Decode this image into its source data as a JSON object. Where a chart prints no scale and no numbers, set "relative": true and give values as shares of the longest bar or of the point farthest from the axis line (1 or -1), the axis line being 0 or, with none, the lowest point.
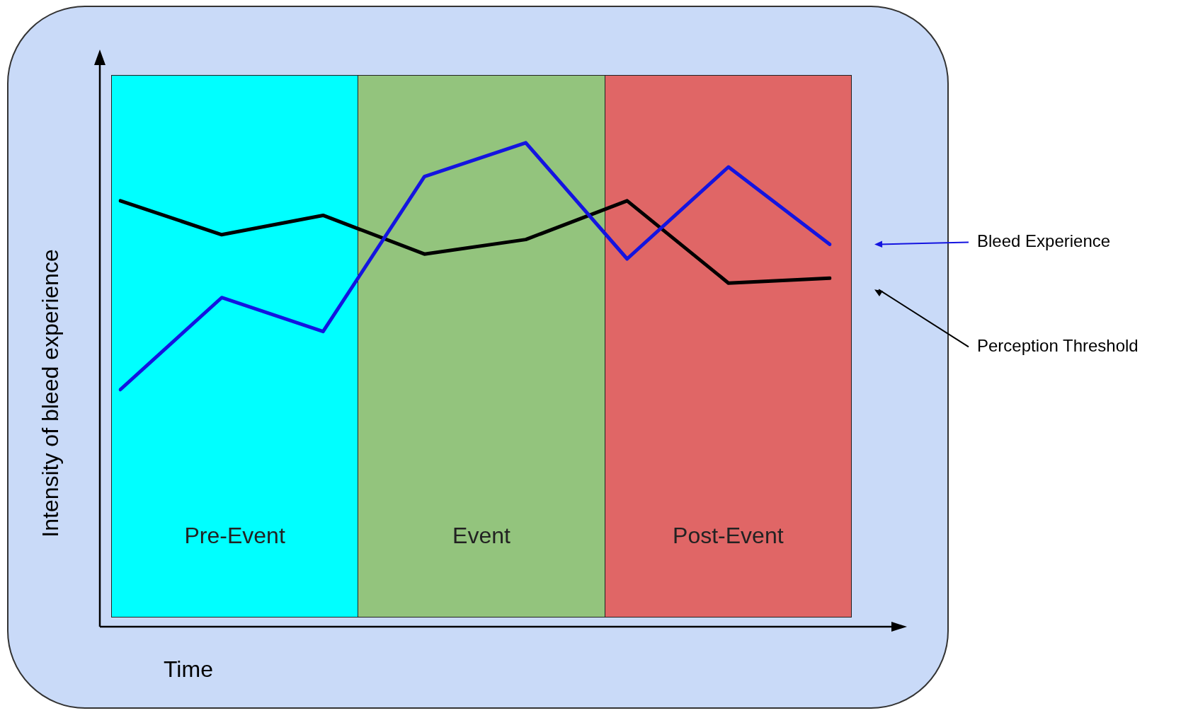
{
  "chart_data": {
    "type": "line",
    "relative": true,
    "xlabel": "Time",
    "ylabel": "Intensity of bleed experience",
    "legend": false,
    "marker": "none",
    "line_style": "solid",
    "categories": [
      null,
      null,
      null,
      null,
      null,
      null,
      null,
      null
    ],
    "series": [
      {
        "name": "Bleed Experience",
        "color": "#1414e0",
        "values": [
          0.49,
          0.68,
          0.61,
          0.93,
          1.0,
          0.76,
          0.95,
          0.79
        ]
      },
      {
        "name": "Perception Threshold",
        "color": "#000000",
        "values": [
          0.88,
          0.81,
          0.85,
          0.77,
          0.8,
          0.88,
          0.71,
          0.72
        ]
      }
    ],
    "annotations": [
      "Pre-Event",
      "Event",
      "Post-Event"
    ]
  }
}
